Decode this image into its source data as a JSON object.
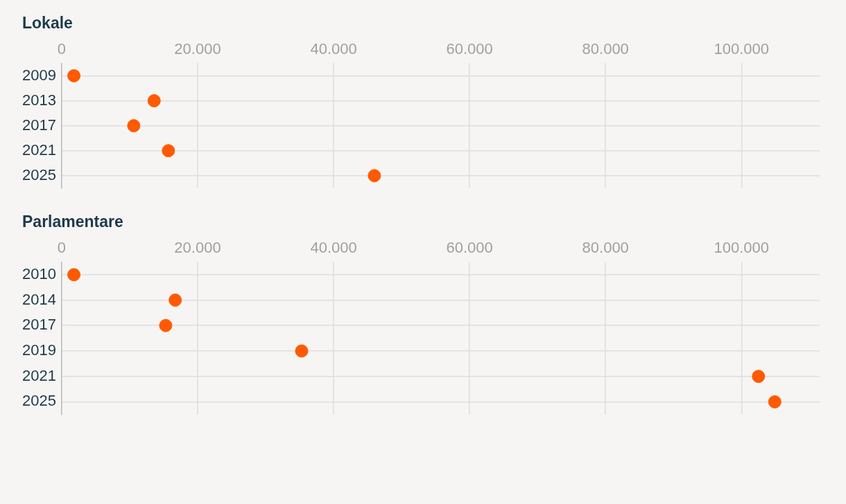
{
  "chart_data": [
    {
      "type": "scatter",
      "title": "Lokale",
      "orientation": "horizontal",
      "categories": [
        "2009",
        "2013",
        "2017",
        "2021",
        "2025"
      ],
      "values": [
        1800,
        13600,
        10600,
        15700,
        46000
      ],
      "color": "#ff5a00",
      "marker": "circle",
      "grid": true,
      "xlim": [
        0,
        111500
      ],
      "xticks": [
        0,
        {
          "value": 20000,
          "label": "20.000"
        },
        {
          "value": 40000,
          "label": "40.000"
        },
        {
          "value": 60000,
          "label": "60.000"
        },
        {
          "value": 80000,
          "label": "80.000"
        },
        {
          "value": 100000,
          "label": "100.000"
        }
      ]
    },
    {
      "type": "scatter",
      "title": "Parlamentare",
      "orientation": "horizontal",
      "categories": [
        "2010",
        "2014",
        "2017",
        "2019",
        "2021",
        "2025"
      ],
      "values": [
        1800,
        16700,
        15300,
        35300,
        102500,
        104900
      ],
      "color": "#ff5a00",
      "marker": "circle",
      "grid": true,
      "xlim": [
        0,
        111500
      ],
      "xticks": [
        0,
        {
          "value": 20000,
          "label": "20.000"
        },
        {
          "value": 40000,
          "label": "40.000"
        },
        {
          "value": 60000,
          "label": "60.000"
        },
        {
          "value": 80000,
          "label": "80.000"
        },
        {
          "value": 100000,
          "label": "100.000"
        }
      ]
    }
  ]
}
